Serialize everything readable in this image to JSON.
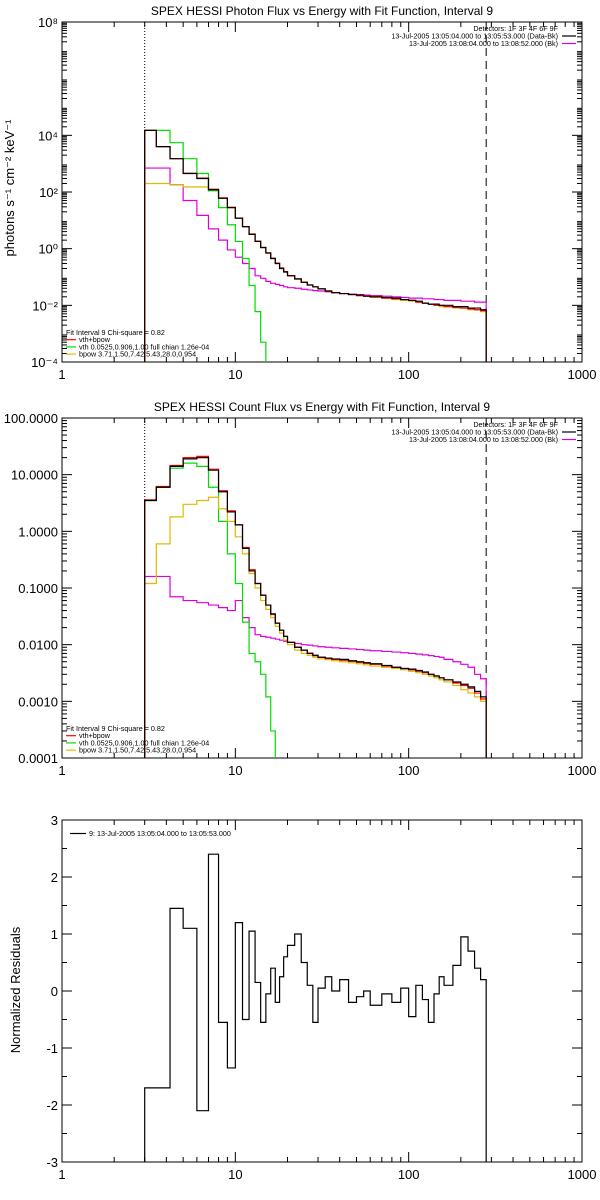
{
  "colors": {
    "data": "#000000",
    "background": "#cc0000",
    "total_fit": "#ff0000",
    "vth": "#00dd00",
    "bpow": "#ddbb00",
    "bk": "#dd00dd"
  },
  "chart_data": [
    {
      "type": "line",
      "title": "SPEX HESSI Photon Flux vs Energy with Fit Function, Interval 9",
      "xlabel": "",
      "ylabel": "photons s⁻¹ cm⁻² keV⁻¹",
      "xscale": "log",
      "yscale": "log",
      "xlim": [
        1,
        1000
      ],
      "ylim": [
        0.0001,
        100000000
      ],
      "xticks": [
        1,
        10,
        100,
        1000
      ],
      "xtick_labels": [
        "1",
        "10",
        "100",
        "1000"
      ],
      "yticks": [
        0.0001,
        0.01,
        1,
        100,
        10000,
        100000000
      ],
      "ytick_labels": [
        "10⁻⁴",
        "10⁻²",
        "10⁰",
        "10²",
        "10⁴",
        "10⁸"
      ],
      "vlines": [
        {
          "x": 3,
          "style": "dotted"
        },
        {
          "x": 280,
          "style": "dashed"
        }
      ],
      "legend_top_right": [
        {
          "text": "Detectors: 1F 3F 4F 6F 9F",
          "color": "#000000"
        },
        {
          "text": "13-Jul-2005 13:05:04.000 to 13:05:53.000 (Data-Bk)",
          "color": "#000000"
        },
        {
          "text": "13-Jul-2005 13:08:04.000 to 13:08:52.000 (Bk)",
          "color": "#dd00dd"
        }
      ],
      "legend_bottom_left": [
        {
          "text": "Fit Interval 9   Chi-square = 0.82",
          "color": "#000000"
        },
        {
          "text": "vth+bpow",
          "color": "#ff0000"
        },
        {
          "text": "vth 0.0525,0.906,1.00  full chian 1.26e-04",
          "color": "#00dd00"
        },
        {
          "text": "bpow 3.71,1.50,7.42,5.43,28.0,0.954",
          "color": "#ddbb00"
        }
      ],
      "edges": [
        3,
        3.5,
        4.2,
        5,
        6,
        7,
        8,
        9,
        10,
        11,
        12,
        13,
        14,
        15,
        16,
        17,
        18,
        19,
        20,
        22,
        24,
        26,
        28,
        30,
        33,
        36,
        40,
        45,
        50,
        55,
        60,
        70,
        80,
        90,
        100,
        110,
        120,
        130,
        140,
        150,
        160,
        180,
        200,
        220,
        240,
        260,
        280
      ],
      "series": [
        {
          "key": "data",
          "color": "#000000",
          "values": [
            15000,
            4000,
            1500,
            450,
            300,
            120,
            60,
            28,
            12,
            6,
            3.2,
            1.8,
            1.1,
            0.7,
            0.45,
            0.3,
            0.2,
            0.15,
            0.11,
            0.085,
            0.065,
            0.052,
            0.045,
            0.038,
            0.032,
            0.028,
            0.026,
            0.024,
            0.023,
            0.021,
            0.02,
            0.019,
            0.018,
            0.016,
            0.015,
            0.014,
            0.012,
            0.011,
            0.011,
            0.01,
            0.01,
            0.009,
            0.009,
            0.008,
            0.008,
            0.007
          ]
        },
        {
          "key": "total_fit",
          "color": "#ff0000",
          "values": [
            15000,
            4000,
            1500,
            460,
            310,
            125,
            62,
            29,
            12,
            6,
            3.3,
            1.85,
            1.1,
            0.72,
            0.46,
            0.31,
            0.21,
            0.155,
            0.112,
            0.086,
            0.066,
            0.053,
            0.045,
            0.038,
            0.032,
            0.028,
            0.026,
            0.024,
            0.022,
            0.021,
            0.02,
            0.018,
            0.017,
            0.016,
            0.015,
            0.013,
            0.012,
            0.011,
            0.01,
            0.01,
            0.009,
            0.0085,
            0.008,
            0.0075,
            0.007,
            0.0065
          ]
        },
        {
          "key": "vth",
          "color": "#00dd00",
          "values": [
            15000,
            15000,
            5500,
            1500,
            450,
            110,
            28,
            7,
            1.8,
            0.45,
            0.05,
            0.006,
            0.0005,
            5e-05
          ]
        },
        {
          "key": "bpow",
          "color": "#ddbb00",
          "values": [
            200,
            200,
            180,
            150,
            150,
            120,
            60,
            28,
            12,
            6,
            3.2,
            1.8,
            1.1,
            0.7,
            0.45,
            0.3,
            0.2,
            0.15,
            0.11,
            0.085,
            0.065,
            0.052,
            0.045,
            0.038,
            0.032,
            0.028,
            0.026,
            0.024,
            0.022,
            0.021,
            0.019,
            0.018,
            0.016,
            0.015,
            0.014,
            0.013,
            0.012,
            0.011,
            0.01,
            0.009,
            0.009,
            0.008,
            0.008,
            0.007,
            0.007,
            0.006
          ]
        },
        {
          "key": "bk",
          "color": "#dd00dd",
          "values": [
            700,
            700,
            180,
            50,
            15,
            5,
            2,
            0.9,
            0.5,
            0.3,
            0.2,
            0.11,
            0.09,
            0.07,
            0.06,
            0.055,
            0.05,
            0.045,
            0.042,
            0.04,
            0.037,
            0.035,
            0.033,
            0.032,
            0.03,
            0.028,
            0.026,
            0.025,
            0.024,
            0.023,
            0.022,
            0.021,
            0.02,
            0.019,
            0.018,
            0.018,
            0.017,
            0.017,
            0.016,
            0.016,
            0.015,
            0.015,
            0.014,
            0.014,
            0.013,
            0.013
          ]
        }
      ]
    },
    {
      "type": "line",
      "title": "SPEX HESSI Count Flux vs Energy with Fit Function, Interval 9",
      "xlabel": "",
      "ylabel": "",
      "xscale": "log",
      "yscale": "log",
      "xlim": [
        1,
        1000
      ],
      "ylim": [
        0.0001,
        100
      ],
      "xticks": [
        1,
        10,
        100,
        1000
      ],
      "xtick_labels": [
        "1",
        "10",
        "100",
        "1000"
      ],
      "yticks": [
        0.0001,
        0.001,
        0.01,
        0.1,
        1,
        10,
        100
      ],
      "ytick_labels": [
        "0.0001",
        "0.0010",
        "0.0100",
        "0.1000",
        "1.0000",
        "10.0000",
        "100.0000"
      ],
      "vlines": [
        {
          "x": 3,
          "style": "dotted"
        },
        {
          "x": 280,
          "style": "dashed"
        }
      ],
      "legend_top_right": [
        {
          "text": "Detectors: 1F 3F 4F 6F 9F",
          "color": "#000000"
        },
        {
          "text": "13-Jul-2005 13:05:04.000 to 13:05:53.000 (Data-Bk)",
          "color": "#000000"
        },
        {
          "text": "13-Jul-2005 13:08:04.000 to 13:08:52.000 (Bk)",
          "color": "#dd00dd"
        }
      ],
      "legend_bottom_left": [
        {
          "text": "Fit Interval 9   Chi-square = 0.82",
          "color": "#000000"
        },
        {
          "text": "vth+bpow",
          "color": "#ff0000"
        },
        {
          "text": "vth 0.0525,0.906,1.00  full chian 1.26e-04",
          "color": "#00dd00"
        },
        {
          "text": "bpow 3.71,1.50,7.42,5.43,28.0,0.954",
          "color": "#ddbb00"
        }
      ],
      "edges": [
        3,
        3.5,
        4.2,
        5,
        6,
        7,
        8,
        9,
        10,
        11,
        12,
        13,
        14,
        15,
        16,
        17,
        18,
        19,
        20,
        22,
        24,
        26,
        28,
        30,
        33,
        36,
        40,
        45,
        50,
        55,
        60,
        70,
        80,
        90,
        100,
        110,
        120,
        130,
        140,
        150,
        160,
        180,
        200,
        220,
        240,
        260,
        280
      ],
      "series": [
        {
          "key": "data",
          "color": "#000000",
          "values": [
            3.5,
            6,
            14,
            19,
            20,
            12,
            5,
            2.2,
            1.3,
            0.5,
            0.2,
            0.12,
            0.075,
            0.05,
            0.035,
            0.024,
            0.018,
            0.014,
            0.011,
            0.009,
            0.008,
            0.007,
            0.0065,
            0.006,
            0.0058,
            0.0056,
            0.0055,
            0.0052,
            0.005,
            0.0048,
            0.0046,
            0.0043,
            0.004,
            0.0038,
            0.0037,
            0.0035,
            0.0033,
            0.003,
            0.0028,
            0.0026,
            0.0024,
            0.0022,
            0.002,
            0.0018,
            0.0015,
            0.0012
          ]
        },
        {
          "key": "total_fit",
          "color": "#ff0000",
          "values": [
            3.6,
            6.2,
            14.5,
            20,
            21,
            12.5,
            5.2,
            2.3,
            1.3,
            0.52,
            0.21,
            0.12,
            0.074,
            0.05,
            0.034,
            0.024,
            0.018,
            0.014,
            0.011,
            0.009,
            0.008,
            0.0071,
            0.0064,
            0.006,
            0.0057,
            0.0055,
            0.0053,
            0.0051,
            0.0049,
            0.0047,
            0.0045,
            0.0042,
            0.004,
            0.0038,
            0.0036,
            0.0034,
            0.0032,
            0.003,
            0.0028,
            0.0026,
            0.0024,
            0.0021,
            0.0019,
            0.0017,
            0.0014,
            0.0011
          ]
        },
        {
          "key": "vth",
          "color": "#00dd00",
          "values": [
            3.5,
            6,
            13,
            16,
            14,
            6,
            1.5,
            0.4,
            0.12,
            0.025,
            0.007,
            0.005,
            0.003,
            0.0012,
            0.0003
          ]
        },
        {
          "key": "bpow",
          "color": "#ddbb00",
          "values": [
            0.12,
            0.6,
            1.8,
            3,
            3.5,
            4,
            2.5,
            1.5,
            0.8,
            0.4,
            0.18,
            0.1,
            0.06,
            0.042,
            0.03,
            0.021,
            0.016,
            0.012,
            0.01,
            0.008,
            0.007,
            0.0065,
            0.006,
            0.0056,
            0.0054,
            0.0052,
            0.005,
            0.0048,
            0.0046,
            0.0044,
            0.0042,
            0.004,
            0.0038,
            0.0036,
            0.0034,
            0.0032,
            0.003,
            0.0028,
            0.0026,
            0.0024,
            0.0022,
            0.0019,
            0.0016,
            0.0014,
            0.0012,
            0.001
          ]
        },
        {
          "key": "bk",
          "color": "#dd00dd",
          "values": [
            0.16,
            0.16,
            0.07,
            0.06,
            0.055,
            0.05,
            0.045,
            0.04,
            0.06,
            0.03,
            0.02,
            0.015,
            0.014,
            0.0135,
            0.013,
            0.0125,
            0.012,
            0.0115,
            0.011,
            0.0105,
            0.01,
            0.0098,
            0.0095,
            0.0092,
            0.009,
            0.0088,
            0.0086,
            0.0084,
            0.0082,
            0.008,
            0.0078,
            0.0076,
            0.0074,
            0.0072,
            0.007,
            0.0068,
            0.0066,
            0.0064,
            0.0062,
            0.006,
            0.0055,
            0.005,
            0.0045,
            0.004,
            0.003,
            0.0025
          ]
        }
      ]
    },
    {
      "type": "line",
      "title": "",
      "xlabel": "",
      "ylabel": "Normalized Residuals",
      "xscale": "log",
      "yscale": "linear",
      "xlim": [
        1,
        1000
      ],
      "ylim": [
        -3,
        3
      ],
      "xticks": [
        1,
        10,
        100,
        1000
      ],
      "xtick_labels": [
        "1",
        "10",
        "100",
        "1000"
      ],
      "yticks": [
        -3,
        -2,
        -1,
        0,
        1,
        2,
        3
      ],
      "ytick_labels": [
        "-3",
        "-2",
        "-1",
        "0",
        "1",
        "2",
        "3"
      ],
      "vlines": [],
      "legend_top_left": [
        {
          "text": "9: 13-Jul-2005 13:05:04.000 to 13:05:53.000",
          "color": "#000000"
        }
      ],
      "edges": [
        3,
        3.5,
        4.2,
        5,
        6,
        7,
        8,
        9,
        10,
        11,
        12,
        13,
        14,
        15,
        16,
        17,
        18,
        19,
        20,
        22,
        24,
        26,
        28,
        30,
        33,
        36,
        40,
        45,
        50,
        55,
        60,
        70,
        80,
        90,
        100,
        110,
        120,
        130,
        140,
        150,
        160,
        180,
        200,
        220,
        240,
        260,
        280
      ],
      "series": [
        {
          "key": "data",
          "color": "#000000",
          "values": [
            -1.7,
            -1.7,
            1.45,
            1.1,
            -2.1,
            2.4,
            -0.55,
            -1.35,
            1.2,
            -0.5,
            1.05,
            0.15,
            -0.55,
            -0.05,
            0.4,
            -0.2,
            0.25,
            0.6,
            0.8,
            1.0,
            0.5,
            0.1,
            -0.55,
            0.05,
            0.25,
            0.0,
            0.2,
            -0.2,
            -0.1,
            0.0,
            -0.25,
            -0.05,
            -0.2,
            0.05,
            -0.45,
            0.1,
            -0.15,
            -0.55,
            -0.05,
            0.25,
            0.1,
            0.45,
            0.95,
            0.7,
            0.4,
            0.2
          ]
        }
      ]
    }
  ]
}
